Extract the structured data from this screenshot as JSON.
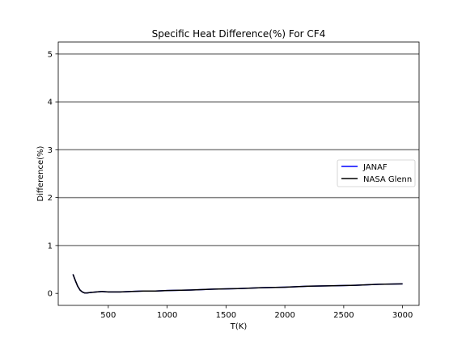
{
  "chart_data": {
    "type": "line",
    "title": "Specific Heat Difference(%) For CF4",
    "xlabel": "T(K)",
    "ylabel": "Difference(%)",
    "xlim": [
      75,
      3140
    ],
    "ylim": [
      -0.25,
      5.25
    ],
    "x_ticks": [
      500,
      1000,
      1500,
      2000,
      2500,
      3000
    ],
    "y_ticks": [
      0,
      1,
      2,
      3,
      4,
      5
    ],
    "x_tick_labels": [
      "500",
      "1000",
      "1500",
      "2000",
      "2500",
      "3000"
    ],
    "y_tick_labels": [
      "0",
      "1",
      "2",
      "3",
      "4",
      "5"
    ],
    "grid": "horizontal lines at y = 1, 2, 3, 4, 5",
    "legend_position": "center-right",
    "series": [
      {
        "name": "JANAF",
        "color": "#0000ff",
        "x": [
          200,
          220,
          240,
          260,
          280,
          298,
          320,
          350,
          400,
          450,
          500,
          600,
          700,
          800,
          900,
          1000,
          1200,
          1400,
          1600,
          1800,
          2000,
          2200,
          2400,
          2600,
          2800,
          3000
        ],
        "y": [
          0.4,
          0.27,
          0.15,
          0.07,
          0.03,
          0.01,
          0.01,
          0.02,
          0.03,
          0.04,
          0.03,
          0.03,
          0.04,
          0.05,
          0.05,
          0.06,
          0.07,
          0.09,
          0.1,
          0.12,
          0.13,
          0.15,
          0.16,
          0.17,
          0.19,
          0.2
        ]
      },
      {
        "name": "NASA Glenn",
        "color": "#000000",
        "x": [
          200,
          220,
          240,
          260,
          280,
          298,
          320,
          350,
          400,
          450,
          500,
          600,
          700,
          800,
          900,
          1000,
          1200,
          1400,
          1600,
          1800,
          2000,
          2200,
          2400,
          2600,
          2800,
          3000
        ],
        "y": [
          0.4,
          0.27,
          0.15,
          0.07,
          0.03,
          0.01,
          0.01,
          0.02,
          0.03,
          0.04,
          0.03,
          0.03,
          0.04,
          0.05,
          0.05,
          0.06,
          0.07,
          0.09,
          0.1,
          0.12,
          0.13,
          0.15,
          0.16,
          0.17,
          0.19,
          0.2
        ]
      }
    ]
  }
}
